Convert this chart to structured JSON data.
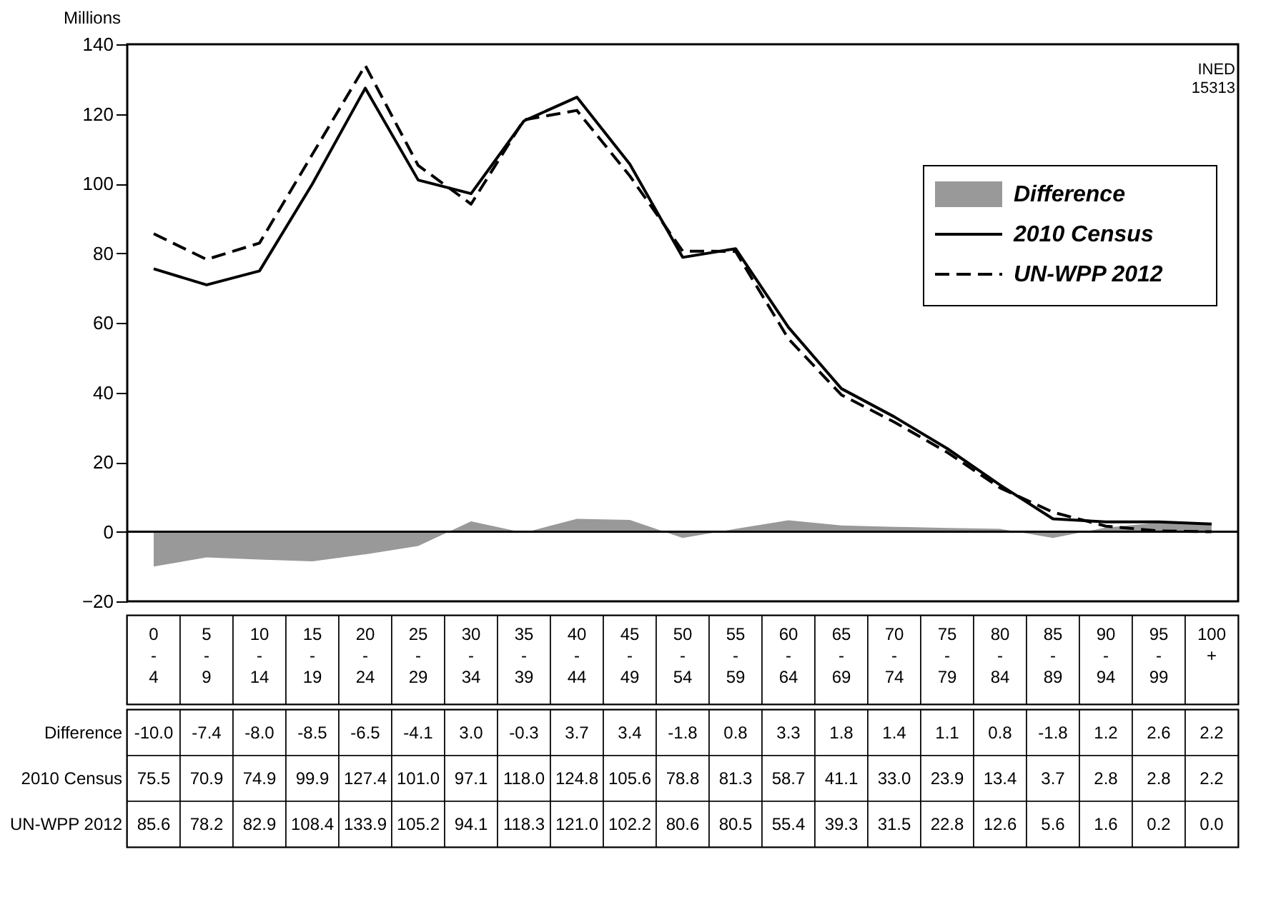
{
  "chart_data": {
    "type": "line",
    "ylabel": "Millions",
    "categories": [
      "0-4",
      "5-9",
      "10-14",
      "15-19",
      "20-24",
      "25-29",
      "30-34",
      "35-39",
      "40-44",
      "45-49",
      "50-54",
      "55-59",
      "60-64",
      "65-69",
      "70-74",
      "75-79",
      "80-84",
      "85-89",
      "90-94",
      "95-99",
      "100+"
    ],
    "series": [
      {
        "name": "Difference",
        "type": "area",
        "color": "#999999",
        "values": [
          -10.0,
          -7.4,
          -8.0,
          -8.5,
          -6.5,
          -4.1,
          3.0,
          -0.3,
          3.7,
          3.4,
          -1.8,
          0.8,
          3.3,
          1.8,
          1.4,
          1.1,
          0.8,
          -1.8,
          1.2,
          2.6,
          2.2
        ],
        "value_labels": [
          "-10.0",
          "-7.4",
          "-8.0",
          "-8.5",
          "-6.5",
          "-4.1",
          "3.0",
          "-0.3",
          "3.7",
          "3.4",
          "-1.8",
          "0.8",
          "3.3",
          "1.8",
          "1.4",
          "1.1",
          "0.8",
          "-1.8",
          "1.2",
          "2.6",
          "2.2"
        ]
      },
      {
        "name": "2010 Census",
        "line_style": "solid",
        "color": "#000000",
        "values": [
          75.5,
          70.9,
          74.9,
          99.9,
          127.4,
          101.0,
          97.1,
          118.0,
          124.8,
          105.6,
          78.8,
          81.3,
          58.7,
          41.1,
          33.0,
          23.9,
          13.4,
          3.7,
          2.8,
          2.8,
          2.2
        ],
        "value_labels": [
          "75.5",
          "70.9",
          "74.9",
          "99.9",
          "127.4",
          "101.0",
          "97.1",
          "118.0",
          "124.8",
          "105.6",
          "78.8",
          "81.3",
          "58.7",
          "41.1",
          "33.0",
          "23.9",
          "13.4",
          "3.7",
          "2.8",
          "2.8",
          "2.2"
        ]
      },
      {
        "name": "UN-WPP 2012",
        "line_style": "dashed",
        "color": "#000000",
        "values": [
          85.6,
          78.2,
          82.9,
          108.4,
          133.9,
          105.2,
          94.1,
          118.3,
          121.0,
          102.2,
          80.6,
          80.5,
          55.4,
          39.3,
          31.5,
          22.8,
          12.6,
          5.6,
          1.6,
          0.2,
          0.0
        ],
        "value_labels": [
          "85.6",
          "78.2",
          "82.9",
          "108.4",
          "133.9",
          "105.2",
          "94.1",
          "118.3",
          "121.0",
          "102.2",
          "80.6",
          "80.5",
          "55.4",
          "39.3",
          "31.5",
          "22.8",
          "12.6",
          "5.6",
          "1.6",
          "0.2",
          "0.0"
        ]
      }
    ],
    "ylim": [
      -20,
      140
    ],
    "yticks": [
      -20,
      0,
      20,
      40,
      60,
      80,
      100,
      120,
      140
    ],
    "ref_lines": [
      {
        "axis": "y",
        "value": 0
      }
    ],
    "grid": false,
    "legend": "top right",
    "annotations": [
      "INED 15313"
    ]
  }
}
